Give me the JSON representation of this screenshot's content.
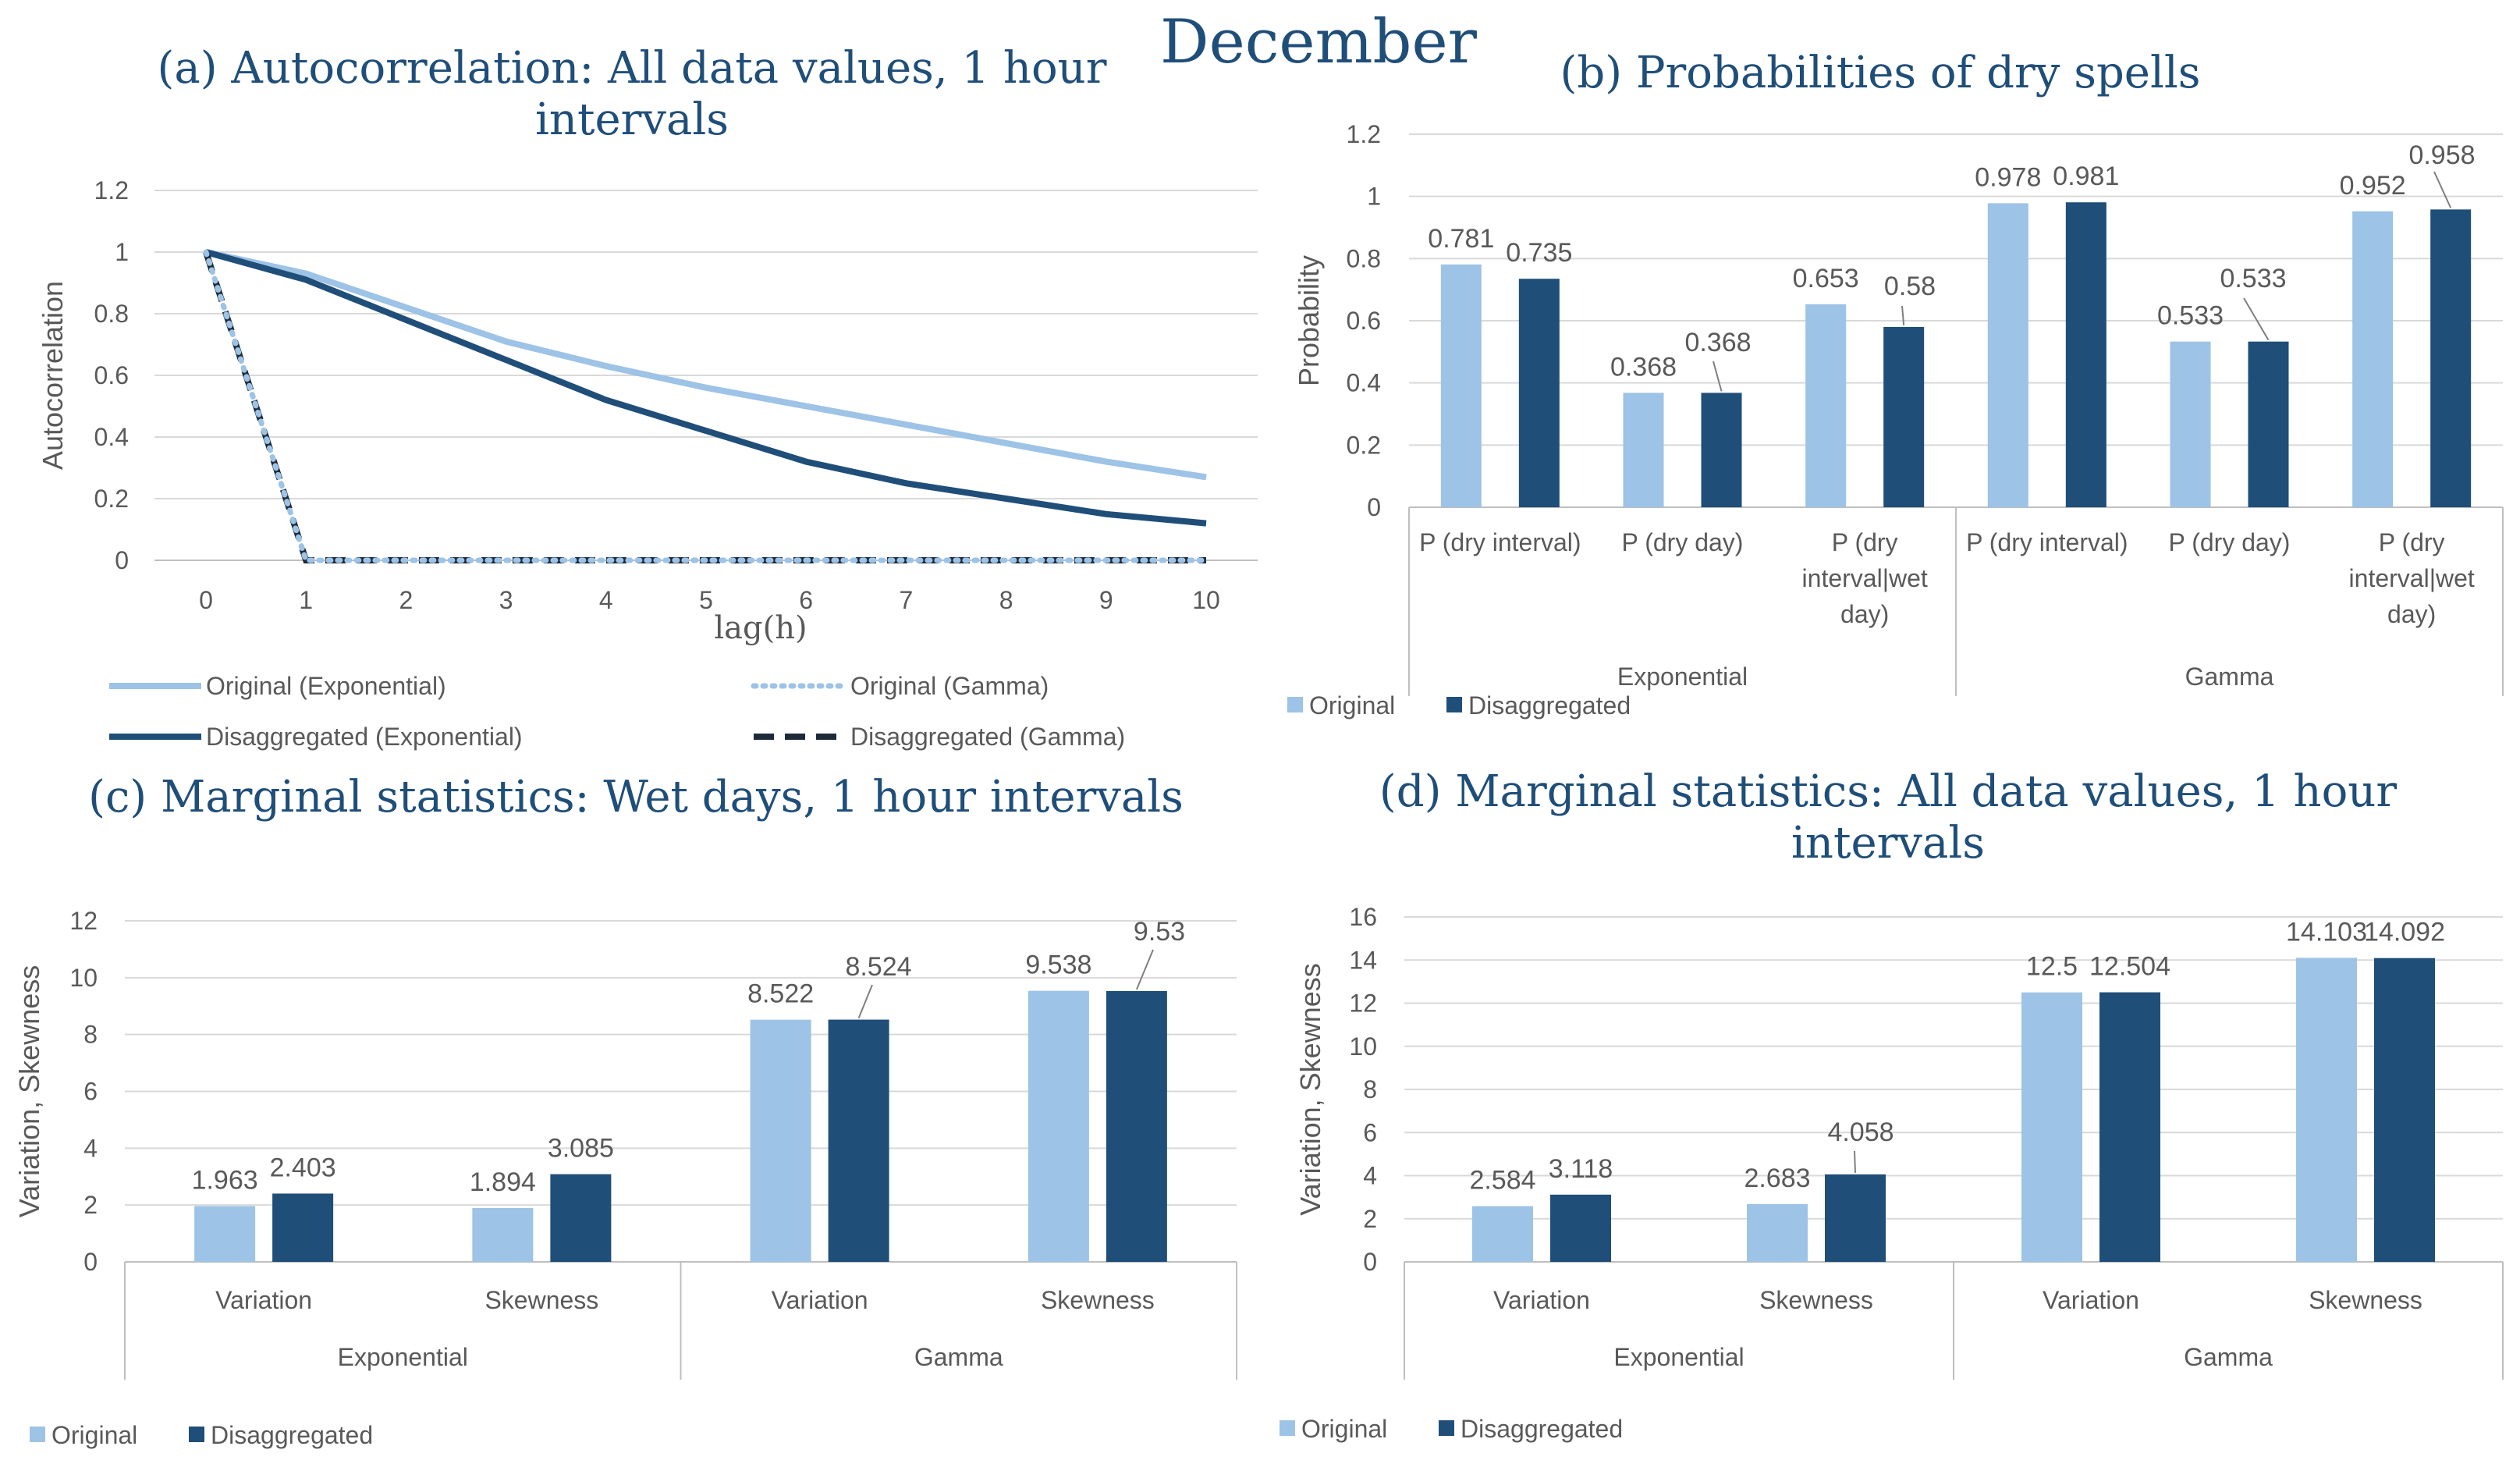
{
  "page_title": "December",
  "colors": {
    "original": "#9dc3e6",
    "disaggregated": "#1f4e79",
    "title": "#1f4e79",
    "axis_text": "#595959",
    "grid": "#d9d9d9"
  },
  "chart_data": [
    {
      "id": "a",
      "type": "line",
      "title": "(a) Autocorrelation: All data values, 1 hour intervals",
      "title_lines": [
        "(a) Autocorrelation: All data values, 1 hour",
        "intervals"
      ],
      "xlabel": "lag(h)",
      "ylabel": "Autocorrelation",
      "x": [
        0,
        1,
        2,
        3,
        4,
        5,
        6,
        7,
        8,
        9,
        10
      ],
      "x_ticks": [
        "0",
        "1",
        "2",
        "3",
        "4",
        "5",
        "6",
        "7",
        "8",
        "9",
        "10"
      ],
      "ylim": [
        0,
        1.2
      ],
      "y_ticks": [
        "0",
        "0.2",
        "0.4",
        "0.6",
        "0.8",
        "1",
        "1.2"
      ],
      "grid": true,
      "legend_position": "bottom",
      "series": [
        {
          "name": "Original (Exponential)",
          "style": "solid-light",
          "values": [
            1,
            0.93,
            0.82,
            0.71,
            0.63,
            0.56,
            0.5,
            0.44,
            0.38,
            0.32,
            0.27
          ]
        },
        {
          "name": "Original (Gamma)",
          "style": "dotted-light",
          "values": [
            1,
            0,
            0,
            0,
            0,
            0,
            0,
            0,
            0,
            0,
            0
          ]
        },
        {
          "name": "Disaggregated (Exponential)",
          "style": "solid-dark",
          "values": [
            1,
            0.91,
            0.78,
            0.65,
            0.52,
            0.42,
            0.32,
            0.25,
            0.2,
            0.15,
            0.12
          ]
        },
        {
          "name": "Disaggregated (Gamma)",
          "style": "dashed-dark",
          "values": [
            1,
            0,
            0,
            0,
            0,
            0,
            0,
            0,
            0,
            0,
            0
          ]
        }
      ]
    },
    {
      "id": "b",
      "type": "bar",
      "title": "(b) Probabilities of dry spells",
      "title_lines": [
        "(b) Probabilities of dry spells"
      ],
      "ylabel": "Probability",
      "ylim": [
        0,
        1.2
      ],
      "y_ticks": [
        "0",
        "0.2",
        "0.4",
        "0.6",
        "0.8",
        "1",
        "1.2"
      ],
      "groups": [
        "Exponential",
        "Gamma"
      ],
      "categories": [
        [
          "P (dry interval)"
        ],
        [
          "P (dry day)"
        ],
        [
          "P (dry",
          "interval|wet",
          "day)"
        ],
        [
          "P (dry interval)"
        ],
        [
          "P (dry day)"
        ],
        [
          "P (dry",
          "interval|wet",
          "day)"
        ]
      ],
      "series": [
        {
          "name": "Original",
          "values": [
            0.781,
            0.368,
            0.653,
            0.978,
            0.533,
            0.952
          ],
          "labels": [
            "0.781",
            "0.368",
            "0.653",
            "0.978",
            "0.533",
            "0.952"
          ]
        },
        {
          "name": "Disaggregated",
          "values": [
            0.735,
            0.368,
            0.58,
            0.981,
            0.533,
            0.958
          ],
          "labels": [
            "0.735",
            "0.368",
            "0.58",
            "0.981",
            "0.533",
            "0.958"
          ]
        }
      ],
      "legend_position": "bottom-left"
    },
    {
      "id": "c",
      "type": "bar",
      "title": "(c) Marginal statistics: Wet days, 1 hour intervals",
      "title_lines": [
        "(c) Marginal statistics: Wet days, 1 hour intervals"
      ],
      "ylabel": "Variation, Skewness",
      "ylim": [
        0,
        12
      ],
      "y_ticks": [
        "0",
        "2",
        "4",
        "6",
        "8",
        "10",
        "12"
      ],
      "groups": [
        "Exponential",
        "Gamma"
      ],
      "categories": [
        [
          "Variation"
        ],
        [
          "Skewness"
        ],
        [
          "Variation"
        ],
        [
          "Skewness"
        ]
      ],
      "series": [
        {
          "name": "Original",
          "values": [
            1.963,
            1.894,
            8.522,
            9.538
          ],
          "labels": [
            "1.963",
            "1.894",
            "8.522",
            "9.538"
          ]
        },
        {
          "name": "Disaggregated",
          "values": [
            2.403,
            3.085,
            8.524,
            9.53
          ],
          "labels": [
            "2.403",
            "3.085",
            "8.524",
            "9.53"
          ]
        }
      ],
      "legend_position": "bottom-left"
    },
    {
      "id": "d",
      "type": "bar",
      "title": "(d) Marginal statistics: All data values, 1 hour intervals",
      "title_lines": [
        "(d) Marginal statistics: All data values, 1 hour",
        "intervals"
      ],
      "ylabel": "Variation, Skewness",
      "ylim": [
        0,
        16
      ],
      "y_ticks": [
        "0",
        "2",
        "4",
        "6",
        "8",
        "10",
        "12",
        "14",
        "16"
      ],
      "groups": [
        "Exponential",
        "Gamma"
      ],
      "categories": [
        [
          "Variation"
        ],
        [
          "Skewness"
        ],
        [
          "Variation"
        ],
        [
          "Skewness"
        ]
      ],
      "series": [
        {
          "name": "Original",
          "values": [
            2.584,
            2.683,
            12.5,
            14.103
          ],
          "labels": [
            "2.584",
            "2.683",
            "12.5",
            "14.103"
          ]
        },
        {
          "name": "Disaggregated",
          "values": [
            3.118,
            4.058,
            12.504,
            14.092
          ],
          "labels": [
            "3.118",
            "4.058",
            "12.504",
            "14.092"
          ]
        }
      ],
      "legend_position": "bottom-left"
    }
  ]
}
